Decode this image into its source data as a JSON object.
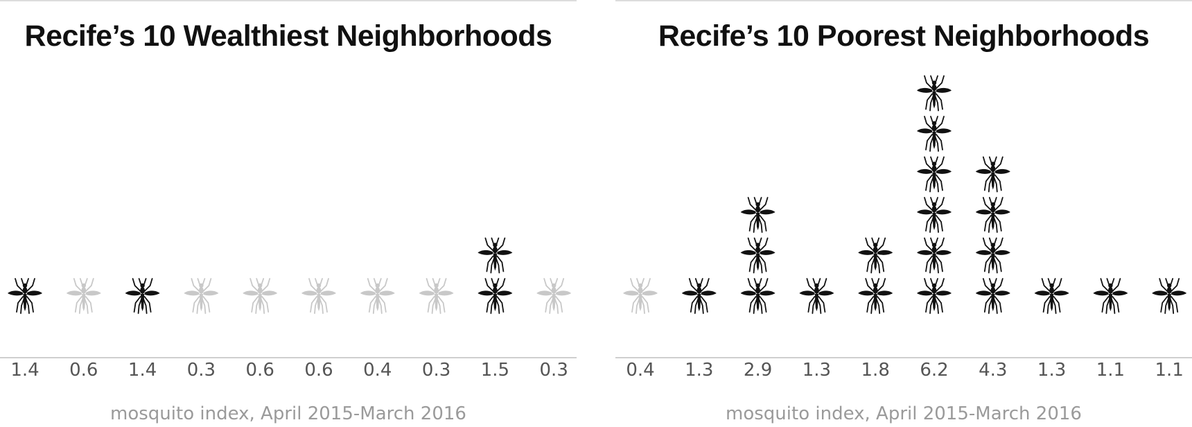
{
  "chart_data": [
    {
      "type": "pictograph",
      "title": "Recife’s 10 Wealthiest Neighborhoods",
      "xlabel": "mosquito index, April 2015-March 2016",
      "categories": [
        "1.4",
        "0.6",
        "1.4",
        "0.3",
        "0.6",
        "0.6",
        "0.4",
        "0.3",
        "1.5",
        "0.3"
      ],
      "values": [
        1.4,
        0.6,
        1.4,
        0.3,
        0.6,
        0.6,
        0.4,
        0.3,
        1.5,
        0.3
      ],
      "icons": [
        1,
        1,
        1,
        1,
        1,
        1,
        1,
        1,
        2,
        1
      ],
      "highlighted": [
        true,
        false,
        true,
        false,
        false,
        false,
        false,
        false,
        true,
        false
      ],
      "icon": "mosquito-icon",
      "colors": {
        "highlight": "#111111",
        "muted": "#c8c8c8"
      }
    },
    {
      "type": "pictograph",
      "title": "Recife’s 10 Poorest Neighborhoods",
      "xlabel": "mosquito index, April 2015-March 2016",
      "categories": [
        "0.4",
        "1.3",
        "2.9",
        "1.3",
        "1.8",
        "6.2",
        "4.3",
        "1.3",
        "1.1",
        "1.1"
      ],
      "values": [
        0.4,
        1.3,
        2.9,
        1.3,
        1.8,
        6.2,
        4.3,
        1.3,
        1.1,
        1.1
      ],
      "icons": [
        1,
        1,
        3,
        1,
        2,
        6,
        4,
        1,
        1,
        1
      ],
      "highlighted": [
        false,
        true,
        true,
        true,
        true,
        true,
        true,
        true,
        true,
        true
      ],
      "icon": "mosquito-icon",
      "colors": {
        "highlight": "#111111",
        "muted": "#c8c8c8"
      }
    }
  ]
}
